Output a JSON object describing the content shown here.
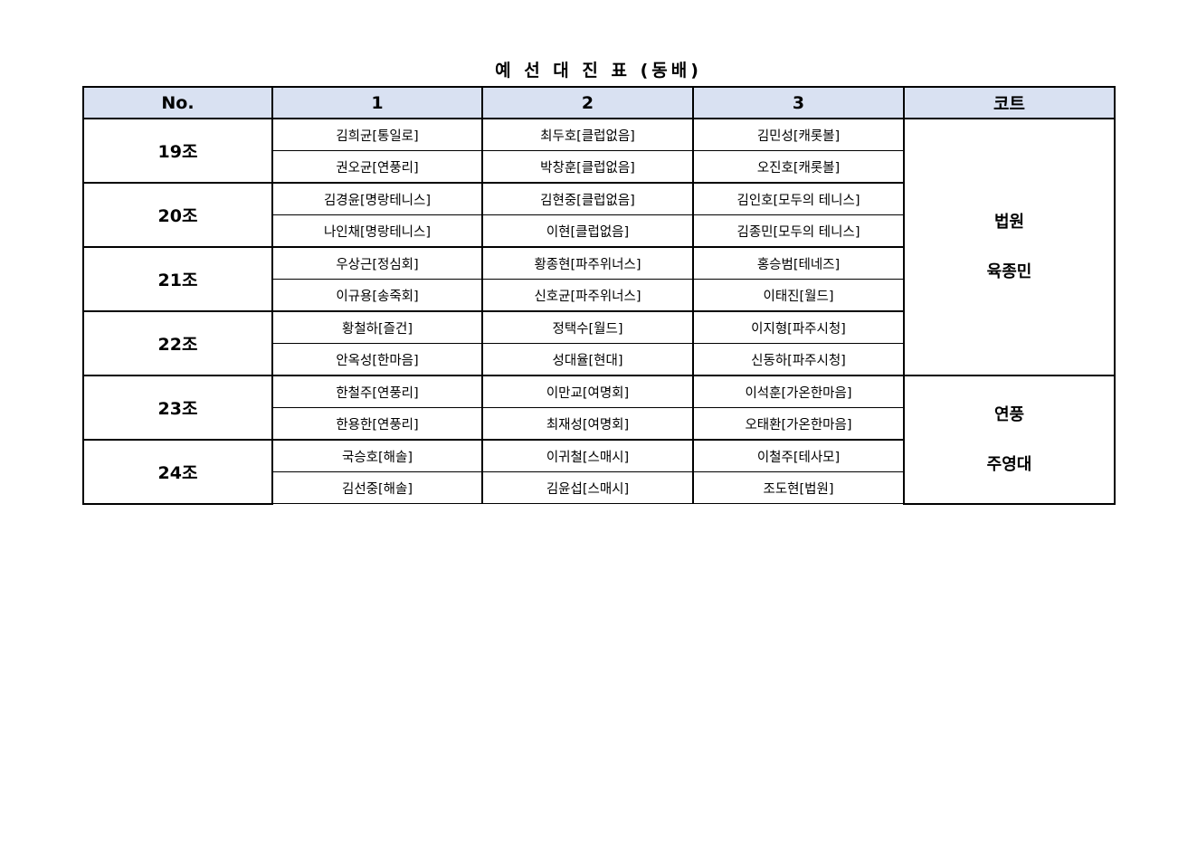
{
  "title": "예 선 대 진 표  (동배)",
  "headers": [
    "No.",
    "1",
    "2",
    "3",
    "코트"
  ],
  "groups": [
    {
      "label": "19조",
      "rows": [
        [
          "김희균[통일로]",
          "최두호[클럽없음]",
          "김민성[캐롯볼]"
        ],
        [
          "권오균[연풍리]",
          "박창훈[클럽없음]",
          "오진호[캐롯볼]"
        ]
      ]
    },
    {
      "label": "20조",
      "rows": [
        [
          "김경윤[명랑테니스]",
          "김현중[클럽없음]",
          "김인호[모두의 테니스]"
        ],
        [
          "나인채[명랑테니스]",
          "이현[클럽없음]",
          "김종민[모두의 테니스]"
        ]
      ]
    },
    {
      "label": "21조",
      "rows": [
        [
          "우상근[정심회]",
          "황종현[파주위너스]",
          "홍승범[테네즈]"
        ],
        [
          "이규용[송죽회]",
          "신호균[파주위너스]",
          "이태진[월드]"
        ]
      ]
    },
    {
      "label": "22조",
      "rows": [
        [
          "황철하[즐건]",
          "정택수[월드]",
          "이지형[파주시청]"
        ],
        [
          "안옥성[한마음]",
          "성대율[현대]",
          "신동하[파주시청]"
        ]
      ]
    },
    {
      "label": "23조",
      "rows": [
        [
          "한철주[연풍리]",
          "이만교[여명회]",
          "이석훈[가온한마음]"
        ],
        [
          "한용한[연풍리]",
          "최재성[여명회]",
          "오태환[가온한마음]"
        ]
      ]
    },
    {
      "label": "24조",
      "rows": [
        [
          "국승호[해솔]",
          "이귀철[스매시]",
          "이철주[테사모]"
        ],
        [
          "김선중[해솔]",
          "김윤섭[스매시]",
          "조도현[법원]"
        ]
      ]
    }
  ],
  "courts": [
    {
      "lines": [
        "법원",
        "육종민"
      ],
      "span_groups": 4
    },
    {
      "lines": [
        "연풍",
        "주영대"
      ],
      "span_groups": 2
    }
  ]
}
